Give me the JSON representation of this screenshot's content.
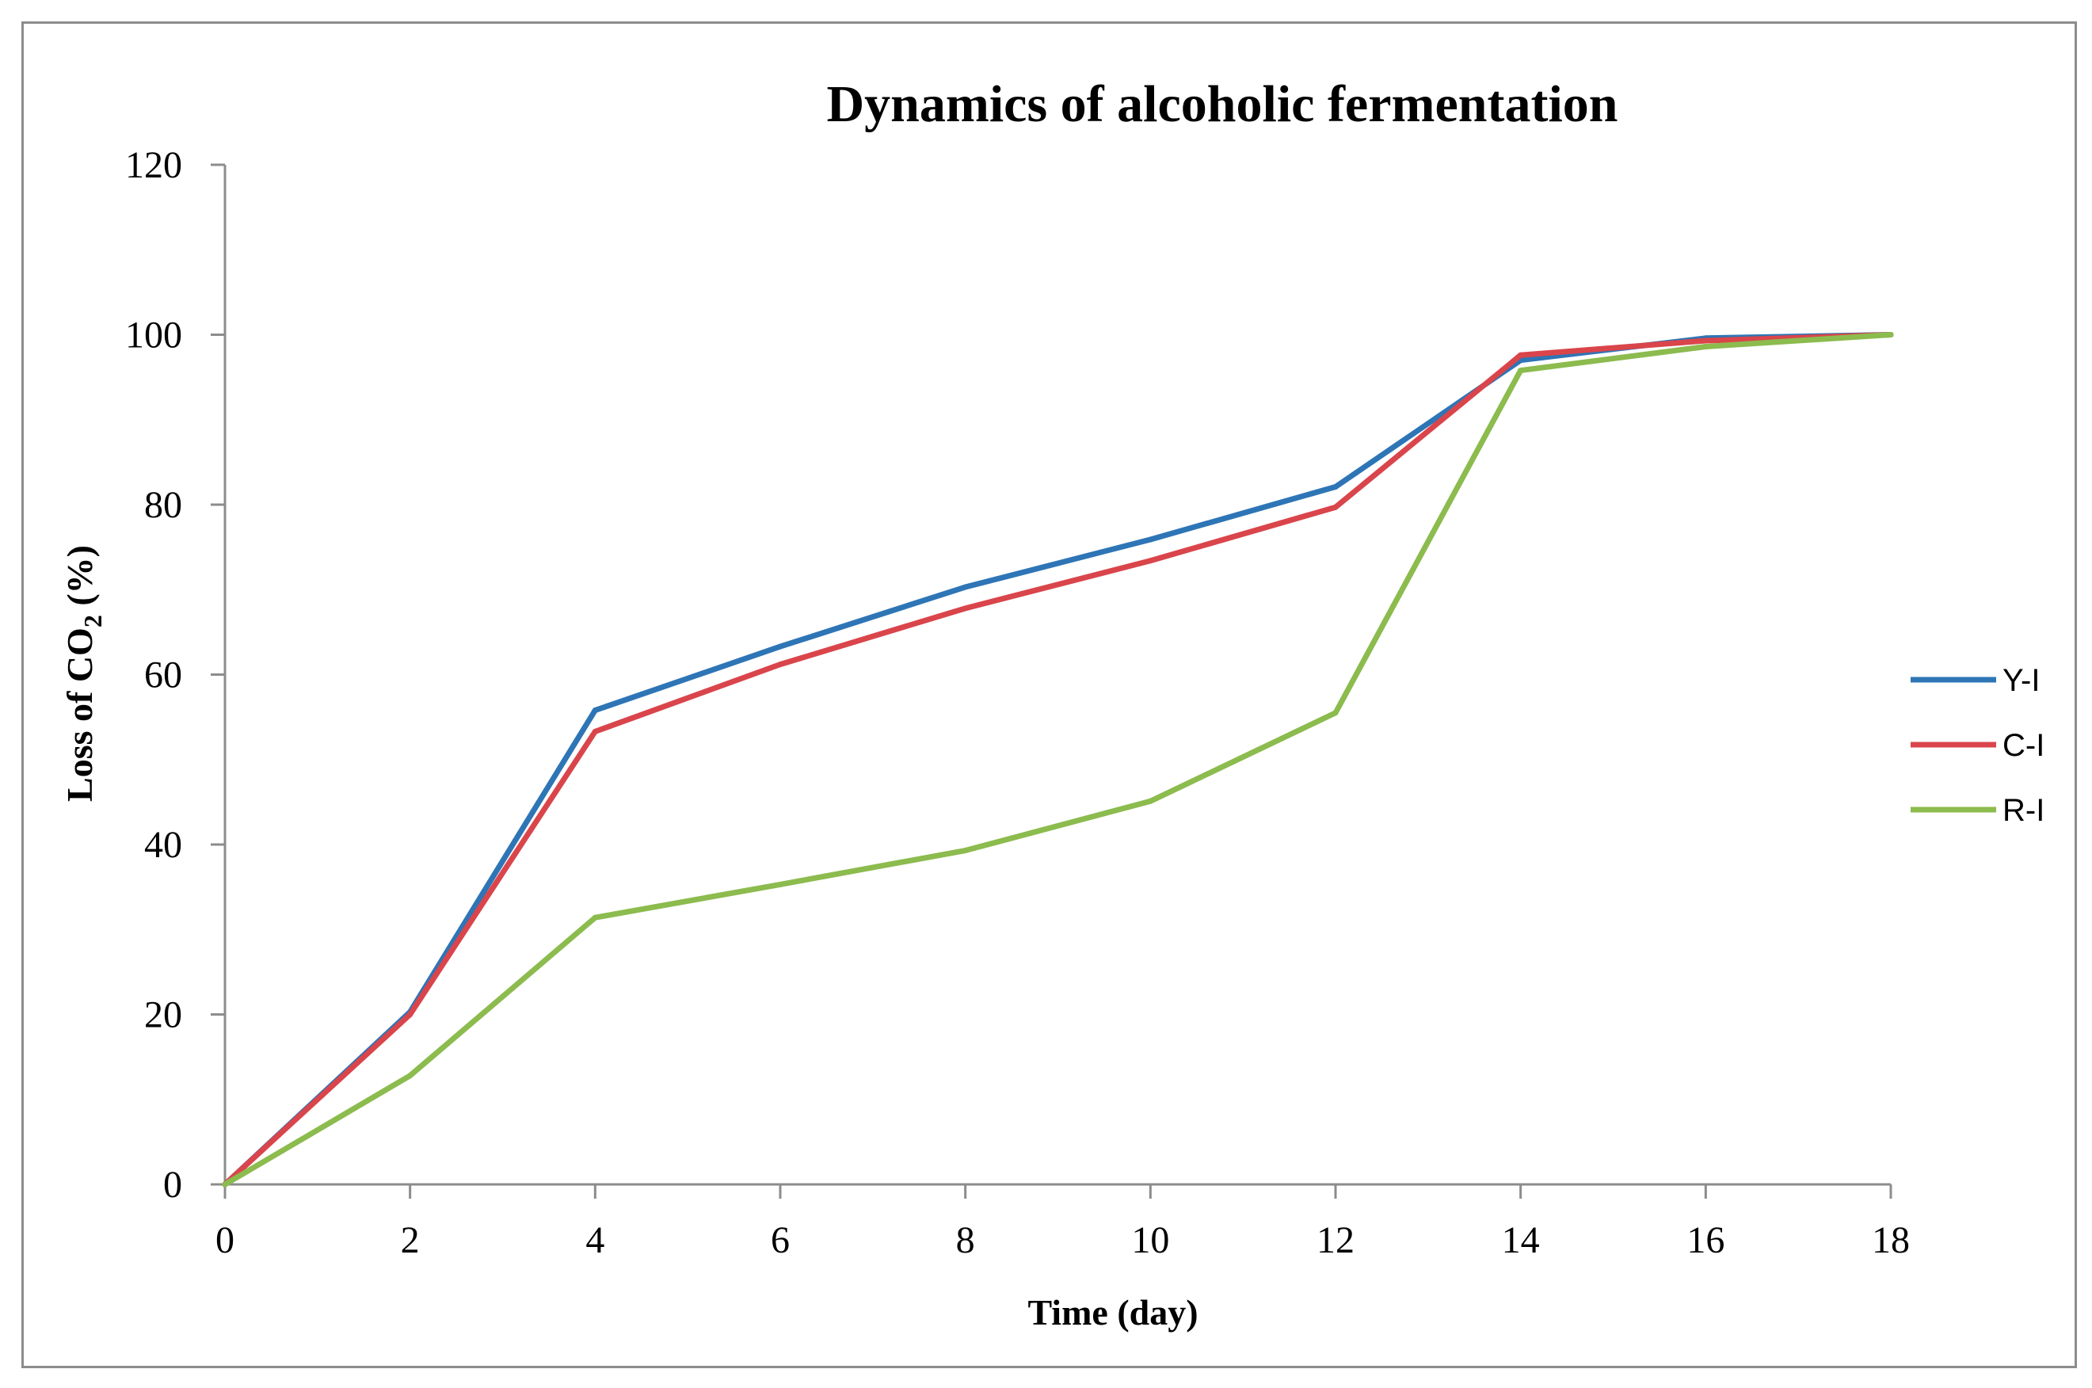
{
  "chart_data": {
    "type": "line",
    "title": "Dynamics of alcoholic fermentation",
    "xlabel": "Time (day)",
    "ylabel_main": "Loss of CO",
    "ylabel_sub": "2",
    "ylabel_tail": " (%)",
    "x": [
      0,
      2,
      4,
      6,
      8,
      10,
      12,
      14,
      16,
      18
    ],
    "xlim": [
      0,
      18
    ],
    "ylim": [
      0,
      120
    ],
    "xticks": [
      "0",
      "2",
      "4",
      "6",
      "8",
      "10",
      "12",
      "14",
      "16",
      "18"
    ],
    "yticks": [
      "0",
      "20",
      "40",
      "60",
      "80",
      "100",
      "120"
    ],
    "grid": false,
    "legend_position": "right",
    "series": [
      {
        "name": "Y-I",
        "color": "#2e75b6",
        "values": [
          0,
          20.3,
          55.8,
          63.3,
          70.3,
          75.9,
          82.1,
          97.0,
          99.6,
          100
        ]
      },
      {
        "name": "C-I",
        "color": "#d9454b",
        "values": [
          0,
          20.0,
          53.3,
          61.2,
          67.8,
          73.4,
          79.7,
          97.6,
          99.3,
          100
        ]
      },
      {
        "name": "R-I",
        "color": "#8cbb4e",
        "values": [
          0,
          12.8,
          31.4,
          35.3,
          39.3,
          45.1,
          55.5,
          95.8,
          98.6,
          100
        ]
      }
    ]
  }
}
